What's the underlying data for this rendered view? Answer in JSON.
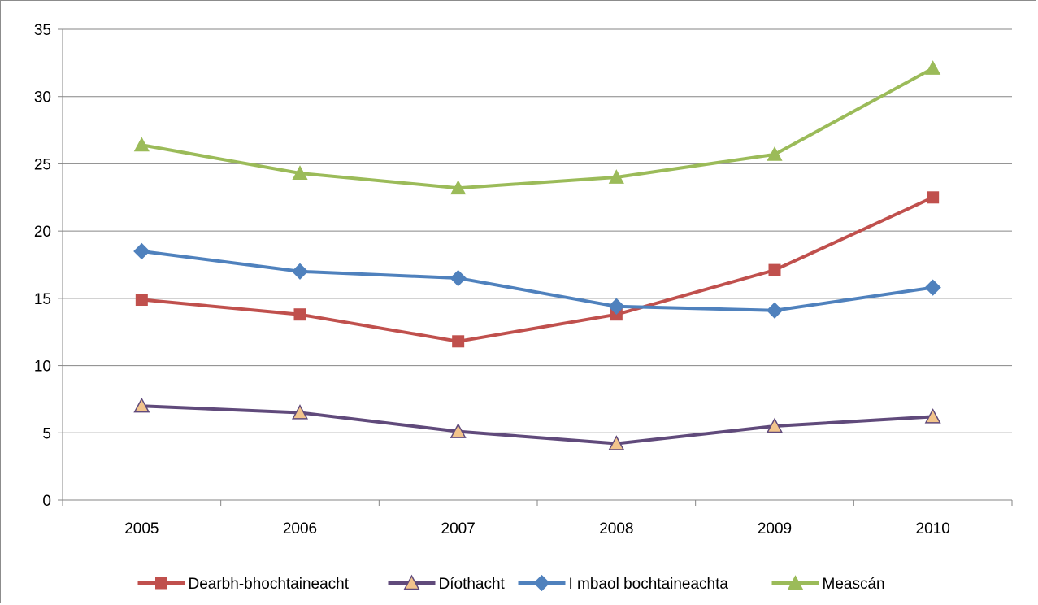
{
  "chart_data": {
    "type": "line",
    "categories": [
      "2005",
      "2006",
      "2007",
      "2008",
      "2009",
      "2010"
    ],
    "ylim": [
      0,
      35
    ],
    "yticks": [
      0,
      5,
      10,
      15,
      20,
      25,
      30,
      35
    ],
    "grid": true,
    "legend_position": "bottom",
    "series": [
      {
        "name": "Dearbh-bhochtaineacht",
        "color": "#c0504d",
        "marker": "square",
        "values": [
          14.9,
          13.8,
          11.8,
          13.8,
          17.1,
          22.5
        ]
      },
      {
        "name": "Díothacht",
        "color": "#604a7b",
        "marker": "triangle",
        "marker_fill": "#f2c48c",
        "values": [
          7.0,
          6.5,
          5.1,
          4.2,
          5.5,
          6.2
        ]
      },
      {
        "name": "I mbaol bochtaineachta",
        "color": "#4f81bd",
        "marker": "diamond",
        "values": [
          18.5,
          17.0,
          16.5,
          14.4,
          14.1,
          15.8
        ]
      },
      {
        "name": "Meascán",
        "color": "#9bbb59",
        "marker": "triangle",
        "values": [
          26.4,
          24.3,
          23.2,
          24.0,
          25.7,
          32.1
        ]
      }
    ]
  }
}
